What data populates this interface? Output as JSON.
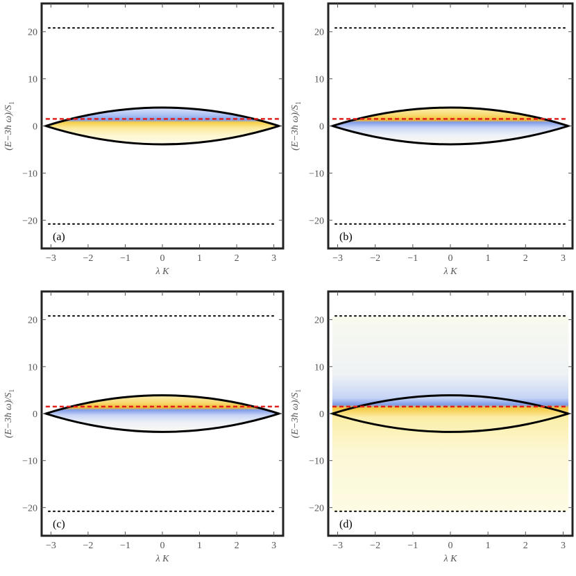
{
  "figure": {
    "xlabel": "λ K",
    "ylabel": "(E−3ħ ω)/S",
    "ylabel_subscript": "1"
  },
  "chart_data": [
    {
      "type": "area",
      "panel_label": "(a)",
      "xlim": [
        -3.25,
        3.25
      ],
      "ylim": [
        -26,
        26
      ],
      "x_ticks": [
        -3,
        -2,
        -1,
        0,
        1,
        2,
        3
      ],
      "y_ticks": [
        -20,
        -10,
        0,
        10,
        20
      ],
      "shaded_region": "lens",
      "fill": "blue above, yellow below",
      "dashed_red_y": 1.5,
      "dotted_black_y": [
        20.8,
        -20.8
      ],
      "lens_half_width": 3.14,
      "lens_half_height": 3.9
    },
    {
      "type": "area",
      "panel_label": "(b)",
      "xlim": [
        -3.25,
        3.25
      ],
      "ylim": [
        -26,
        26
      ],
      "x_ticks": [
        -3,
        -2,
        -1,
        0,
        1,
        2,
        3
      ],
      "y_ticks": [
        -20,
        -10,
        0,
        10,
        20
      ],
      "shaded_region": "lens",
      "fill": "yellow above, blue below",
      "dashed_red_y": 1.5,
      "dotted_black_y": [
        20.8,
        -20.8
      ],
      "lens_half_width": 3.14,
      "lens_half_height": 3.9
    },
    {
      "type": "area",
      "panel_label": "(c)",
      "xlim": [
        -3.25,
        3.25
      ],
      "ylim": [
        -26,
        26
      ],
      "x_ticks": [
        -3,
        -2,
        -1,
        0,
        1,
        2,
        3
      ],
      "y_ticks": [
        -20,
        -10,
        0,
        10,
        20
      ],
      "shaded_region": "lens",
      "fill": "yellow above, blue below",
      "dashed_red_y": 1.5,
      "dotted_black_y": [
        20.8,
        -20.8
      ],
      "lens_half_width": 3.14,
      "lens_half_height": 3.9
    },
    {
      "type": "area",
      "panel_label": "(d)",
      "xlim": [
        -3.25,
        3.25
      ],
      "ylim": [
        -26,
        26
      ],
      "x_ticks": [
        -3,
        -2,
        -1,
        0,
        1,
        2,
        3
      ],
      "y_ticks": [
        -20,
        -10,
        0,
        10,
        20
      ],
      "shaded_region": "band",
      "fill": "blue above, yellow below",
      "dashed_red_y": 1.5,
      "dotted_black_y": [
        20.8,
        -20.8
      ],
      "lens_half_width": 3.14,
      "lens_half_height": 3.9
    }
  ]
}
